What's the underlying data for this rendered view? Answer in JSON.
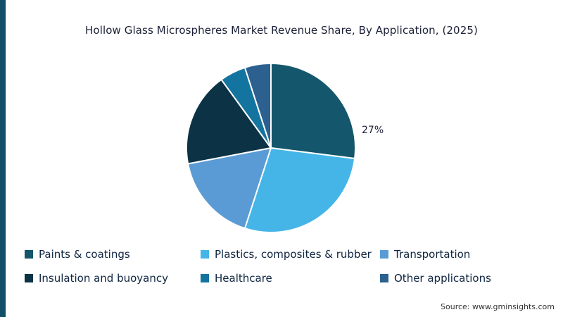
{
  "title": "Hollow Glass Microspheres Market Revenue Share, By Application, (2025)",
  "source": "Source: www.gminsights.com",
  "accent_bar_color": "#134f66",
  "chart_data": {
    "type": "pie",
    "title": "Hollow Glass Microspheres Market Revenue Share, By Application, (2025)",
    "labels": [
      "Paints & coatings",
      "Plastics, composites & rubber",
      "Transportation",
      "Insulation and buoyancy",
      "Healthcare",
      "Other applications"
    ],
    "values": [
      27,
      28,
      17,
      18,
      5,
      5
    ],
    "colors": [
      "#14566b",
      "#45b5e8",
      "#5b9bd5",
      "#0b3245",
      "#1474a0",
      "#2b608f"
    ],
    "start_angle_deg": -90,
    "direction": "clockwise",
    "legend_position": "bottom",
    "visible_data_labels": [
      {
        "text": "27%",
        "slice": "Paints & coatings"
      }
    ]
  }
}
